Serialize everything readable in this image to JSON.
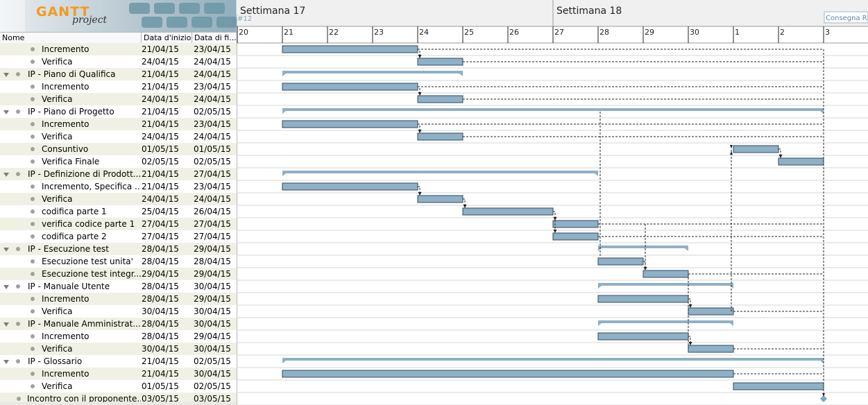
{
  "logo": {
    "brand": "GANTT",
    "sub": "project"
  },
  "columns": {
    "name": "Nome",
    "start": "Data d'inizio",
    "end": "Data di fi..."
  },
  "timeline": {
    "weeks": [
      "Settimana  17",
      "Settimana  18"
    ],
    "days": [
      "20",
      "21",
      "22",
      "23",
      "24",
      "25",
      "26",
      "27",
      "28",
      "29",
      "30",
      "1",
      "2",
      "3"
    ],
    "version_label": "#12",
    "milestone_label": "Consegna RP"
  },
  "colors": {
    "bar": "#8fb0c6",
    "bar_border": "#2f4a5c",
    "summary": "#8fb0c6",
    "odd_row": "#f0f1e4",
    "milestone": "#7fa6c0"
  },
  "tasks": [
    {
      "name": "Incremento",
      "start": "21/04/15",
      "end": "23/04/15",
      "level": 1,
      "type": "task",
      "s": 1,
      "e": 4
    },
    {
      "name": "Verifica",
      "start": "24/04/15",
      "end": "24/04/15",
      "level": 1,
      "type": "task",
      "s": 4,
      "e": 5
    },
    {
      "name": "IP - Piano di Qualifica",
      "start": "21/04/15",
      "end": "24/04/15",
      "level": 0,
      "type": "summary",
      "s": 1,
      "e": 5
    },
    {
      "name": "Incremento",
      "start": "21/04/15",
      "end": "23/04/15",
      "level": 1,
      "type": "task",
      "s": 1,
      "e": 4
    },
    {
      "name": "Verifica",
      "start": "24/04/15",
      "end": "24/04/15",
      "level": 1,
      "type": "task",
      "s": 4,
      "e": 5
    },
    {
      "name": "IP - Piano di Progetto",
      "start": "21/04/15",
      "end": "02/05/15",
      "level": 0,
      "type": "summary",
      "s": 1,
      "e": 13
    },
    {
      "name": "Incremento",
      "start": "21/04/15",
      "end": "23/04/15",
      "level": 1,
      "type": "task",
      "s": 1,
      "e": 4
    },
    {
      "name": "Verifica",
      "start": "24/04/15",
      "end": "24/04/15",
      "level": 1,
      "type": "task",
      "s": 4,
      "e": 5
    },
    {
      "name": "Consuntivo",
      "start": "01/05/15",
      "end": "01/05/15",
      "level": 1,
      "type": "task",
      "s": 11,
      "e": 12
    },
    {
      "name": "Verifica Finale",
      "start": "02/05/15",
      "end": "02/05/15",
      "level": 1,
      "type": "task",
      "s": 12,
      "e": 13
    },
    {
      "name": "IP - Definizione di Prodott...",
      "start": "21/04/15",
      "end": "27/04/15",
      "level": 0,
      "type": "summary",
      "s": 1,
      "e": 8
    },
    {
      "name": "Incremento, Specifica ...",
      "start": "21/04/15",
      "end": "23/04/15",
      "level": 1,
      "type": "task",
      "s": 1,
      "e": 4
    },
    {
      "name": "Verifica",
      "start": "24/04/15",
      "end": "24/04/15",
      "level": 1,
      "type": "task",
      "s": 4,
      "e": 5
    },
    {
      "name": "codifica parte 1",
      "start": "25/04/15",
      "end": "26/04/15",
      "level": 1,
      "type": "task",
      "s": 5,
      "e": 7
    },
    {
      "name": "verifica codice parte 1",
      "start": "27/04/15",
      "end": "27/04/15",
      "level": 1,
      "type": "task",
      "s": 7,
      "e": 8
    },
    {
      "name": "codifica parte 2",
      "start": "27/04/15",
      "end": "27/04/15",
      "level": 1,
      "type": "task",
      "s": 7,
      "e": 8
    },
    {
      "name": "IP - Esecuzione test",
      "start": "28/04/15",
      "end": "29/04/15",
      "level": 0,
      "type": "summary",
      "s": 8,
      "e": 10
    },
    {
      "name": "Esecuzione test unita'",
      "start": "28/04/15",
      "end": "28/04/15",
      "level": 1,
      "type": "task",
      "s": 8,
      "e": 9
    },
    {
      "name": "Esecuzione test integr...",
      "start": "29/04/15",
      "end": "29/04/15",
      "level": 1,
      "type": "task",
      "s": 9,
      "e": 10
    },
    {
      "name": "IP - Manuale Utente",
      "start": "28/04/15",
      "end": "30/04/15",
      "level": 0,
      "type": "summary",
      "s": 8,
      "e": 11
    },
    {
      "name": "Incremento",
      "start": "28/04/15",
      "end": "29/04/15",
      "level": 1,
      "type": "task",
      "s": 8,
      "e": 10
    },
    {
      "name": "Verifica",
      "start": "30/04/15",
      "end": "30/04/15",
      "level": 1,
      "type": "task",
      "s": 10,
      "e": 11
    },
    {
      "name": "IP - Manuale Amministrat...",
      "start": "28/04/15",
      "end": "30/04/15",
      "level": 0,
      "type": "summary",
      "s": 8,
      "e": 11
    },
    {
      "name": "Incremento",
      "start": "28/04/15",
      "end": "29/04/15",
      "level": 1,
      "type": "task",
      "s": 8,
      "e": 10
    },
    {
      "name": "Verifica",
      "start": "30/04/15",
      "end": "30/04/15",
      "level": 1,
      "type": "task",
      "s": 10,
      "e": 11
    },
    {
      "name": "IP - Glossario",
      "start": "21/04/15",
      "end": "02/05/15",
      "level": 0,
      "type": "summary",
      "s": 1,
      "e": 13
    },
    {
      "name": "Incremento",
      "start": "21/04/15",
      "end": "30/04/15",
      "level": 1,
      "type": "task",
      "s": 1,
      "e": 11
    },
    {
      "name": "Verifica",
      "start": "01/05/15",
      "end": "02/05/15",
      "level": 1,
      "type": "task",
      "s": 11,
      "e": 13
    },
    {
      "name": "Incontro con il proponente...",
      "start": "03/05/15",
      "end": "03/05/15",
      "level": -1,
      "type": "milestone",
      "s": 13,
      "e": 13
    }
  ]
}
